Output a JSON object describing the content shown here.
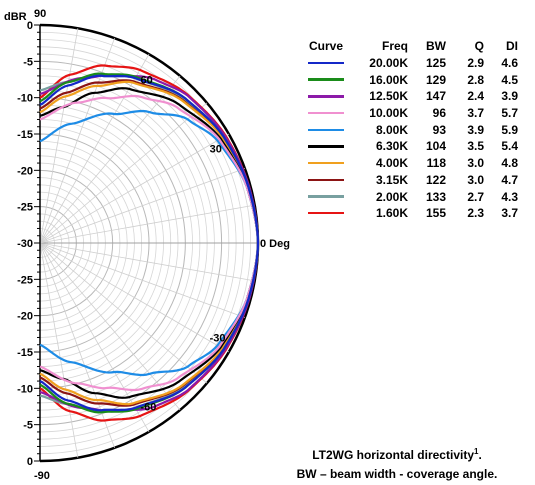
{
  "chart_data": {
    "type": "polar",
    "view": "half-polar (0 Deg at right, +90 top, -90 bottom)",
    "radial_unit_label": "dBR",
    "radial_range": [
      -30,
      0
    ],
    "radial_ticks_upper": [
      "0",
      "-5",
      "-10",
      "-15",
      "-20",
      "-25",
      "-30"
    ],
    "radial_ticks_lower": [
      "-25",
      "-20",
      "-15",
      "-10",
      "-5",
      "0"
    ],
    "angle_labels": [
      {
        "text": "90",
        "angle": 90
      },
      {
        "text": "60",
        "angle": 60
      },
      {
        "text": "30",
        "angle": 30
      },
      {
        "text": "0 Deg",
        "angle": 0
      },
      {
        "text": "-30",
        "angle": -30
      },
      {
        "text": "-60",
        "angle": -60
      },
      {
        "text": "-90",
        "angle": -90
      }
    ],
    "legend_headers": {
      "curve": "Curve",
      "freq": "Freq",
      "bw": "BW",
      "q": "Q",
      "di": "DI"
    },
    "series": [
      {
        "freq": "20.00K",
        "bw": "125",
        "q": "2.9",
        "di": "4.6",
        "color": "#1428c8",
        "values": [
          [
            0,
            0
          ],
          [
            15,
            -0.3
          ],
          [
            30,
            -0.8
          ],
          [
            45,
            -1.8
          ],
          [
            60,
            -3.8
          ],
          [
            70,
            -5.5
          ],
          [
            80,
            -8
          ],
          [
            90,
            -11
          ]
        ]
      },
      {
        "freq": "16.00K",
        "bw": "129",
        "q": "2.8",
        "di": "4.5",
        "color": "#1a8c1a",
        "values": [
          [
            0,
            0
          ],
          [
            15,
            -0.3
          ],
          [
            30,
            -0.8
          ],
          [
            45,
            -1.8
          ],
          [
            60,
            -3.6
          ],
          [
            70,
            -5.2
          ],
          [
            80,
            -7.5
          ],
          [
            90,
            -10.5
          ]
        ]
      },
      {
        "freq": "12.50K",
        "bw": "147",
        "q": "2.4",
        "di": "3.9",
        "color": "#8c1aa8",
        "values": [
          [
            0,
            0
          ],
          [
            15,
            -0.2
          ],
          [
            30,
            -0.6
          ],
          [
            45,
            -1.3
          ],
          [
            55,
            -2.5
          ],
          [
            65,
            -4.5
          ],
          [
            75,
            -6.5
          ],
          [
            90,
            -9.5
          ]
        ]
      },
      {
        "freq": "10.00K",
        "bw": "96",
        "q": "3.7",
        "di": "5.7",
        "color": "#f090d0",
        "values": [
          [
            0,
            0
          ],
          [
            15,
            -0.5
          ],
          [
            30,
            -1.5
          ],
          [
            45,
            -3.5
          ],
          [
            55,
            -5.5
          ],
          [
            65,
            -8
          ],
          [
            75,
            -10
          ],
          [
            90,
            -13
          ]
        ]
      },
      {
        "freq": "8.00K",
        "bw": "93",
        "q": "3.9",
        "di": "5.9",
        "color": "#1e8ce6",
        "values": [
          [
            0,
            0
          ],
          [
            15,
            -0.5
          ],
          [
            30,
            -1.8
          ],
          [
            40,
            -3.5
          ],
          [
            50,
            -6.5
          ],
          [
            60,
            -9.5
          ],
          [
            75,
            -13
          ],
          [
            90,
            -16
          ]
        ]
      },
      {
        "freq": "6.30K",
        "bw": "104",
        "q": "3.5",
        "di": "5.4",
        "color": "#000000",
        "values": [
          [
            0,
            0
          ],
          [
            15,
            -0.5
          ],
          [
            30,
            -1.3
          ],
          [
            45,
            -3
          ],
          [
            60,
            -5.5
          ],
          [
            70,
            -8
          ],
          [
            80,
            -11
          ],
          [
            90,
            -12.5
          ]
        ]
      },
      {
        "freq": "4.00K",
        "bw": "118",
        "q": "3.0",
        "di": "4.8",
        "color": "#f0a01e",
        "values": [
          [
            0,
            0
          ],
          [
            15,
            -0.4
          ],
          [
            30,
            -1
          ],
          [
            45,
            -2.3
          ],
          [
            60,
            -4.5
          ],
          [
            70,
            -7
          ],
          [
            80,
            -9.5
          ],
          [
            90,
            -12
          ]
        ]
      },
      {
        "freq": "3.15K",
        "bw": "122",
        "q": "3.0",
        "di": "4.7",
        "color": "#8c1414",
        "values": [
          [
            0,
            0
          ],
          [
            15,
            -0.4
          ],
          [
            30,
            -1
          ],
          [
            45,
            -2.2
          ],
          [
            60,
            -4.3
          ],
          [
            70,
            -6.5
          ],
          [
            80,
            -9
          ],
          [
            90,
            -11.5
          ]
        ]
      },
      {
        "freq": "2.00K",
        "bw": "133",
        "q": "2.7",
        "di": "4.3",
        "color": "#78a0a0",
        "values": [
          [
            0,
            0
          ],
          [
            15,
            -0.3
          ],
          [
            30,
            -0.9
          ],
          [
            45,
            -2
          ],
          [
            60,
            -3.8
          ],
          [
            70,
            -5.5
          ],
          [
            80,
            -7.5
          ],
          [
            90,
            -9
          ]
        ]
      },
      {
        "freq": "1.60K",
        "bw": "155",
        "q": "2.3",
        "di": "3.7",
        "color": "#e61414",
        "values": [
          [
            0,
            0
          ],
          [
            15,
            -0.2
          ],
          [
            30,
            -0.5
          ],
          [
            45,
            -1.2
          ],
          [
            60,
            -2.5
          ],
          [
            70,
            -4
          ],
          [
            80,
            -6.5
          ],
          [
            90,
            -10
          ]
        ]
      }
    ]
  },
  "caption": {
    "line1": "LT2WG horizontal directivity",
    "line1_sup": "1",
    "line1_end": ".",
    "line2": "BW – beam width - coverage angle."
  }
}
